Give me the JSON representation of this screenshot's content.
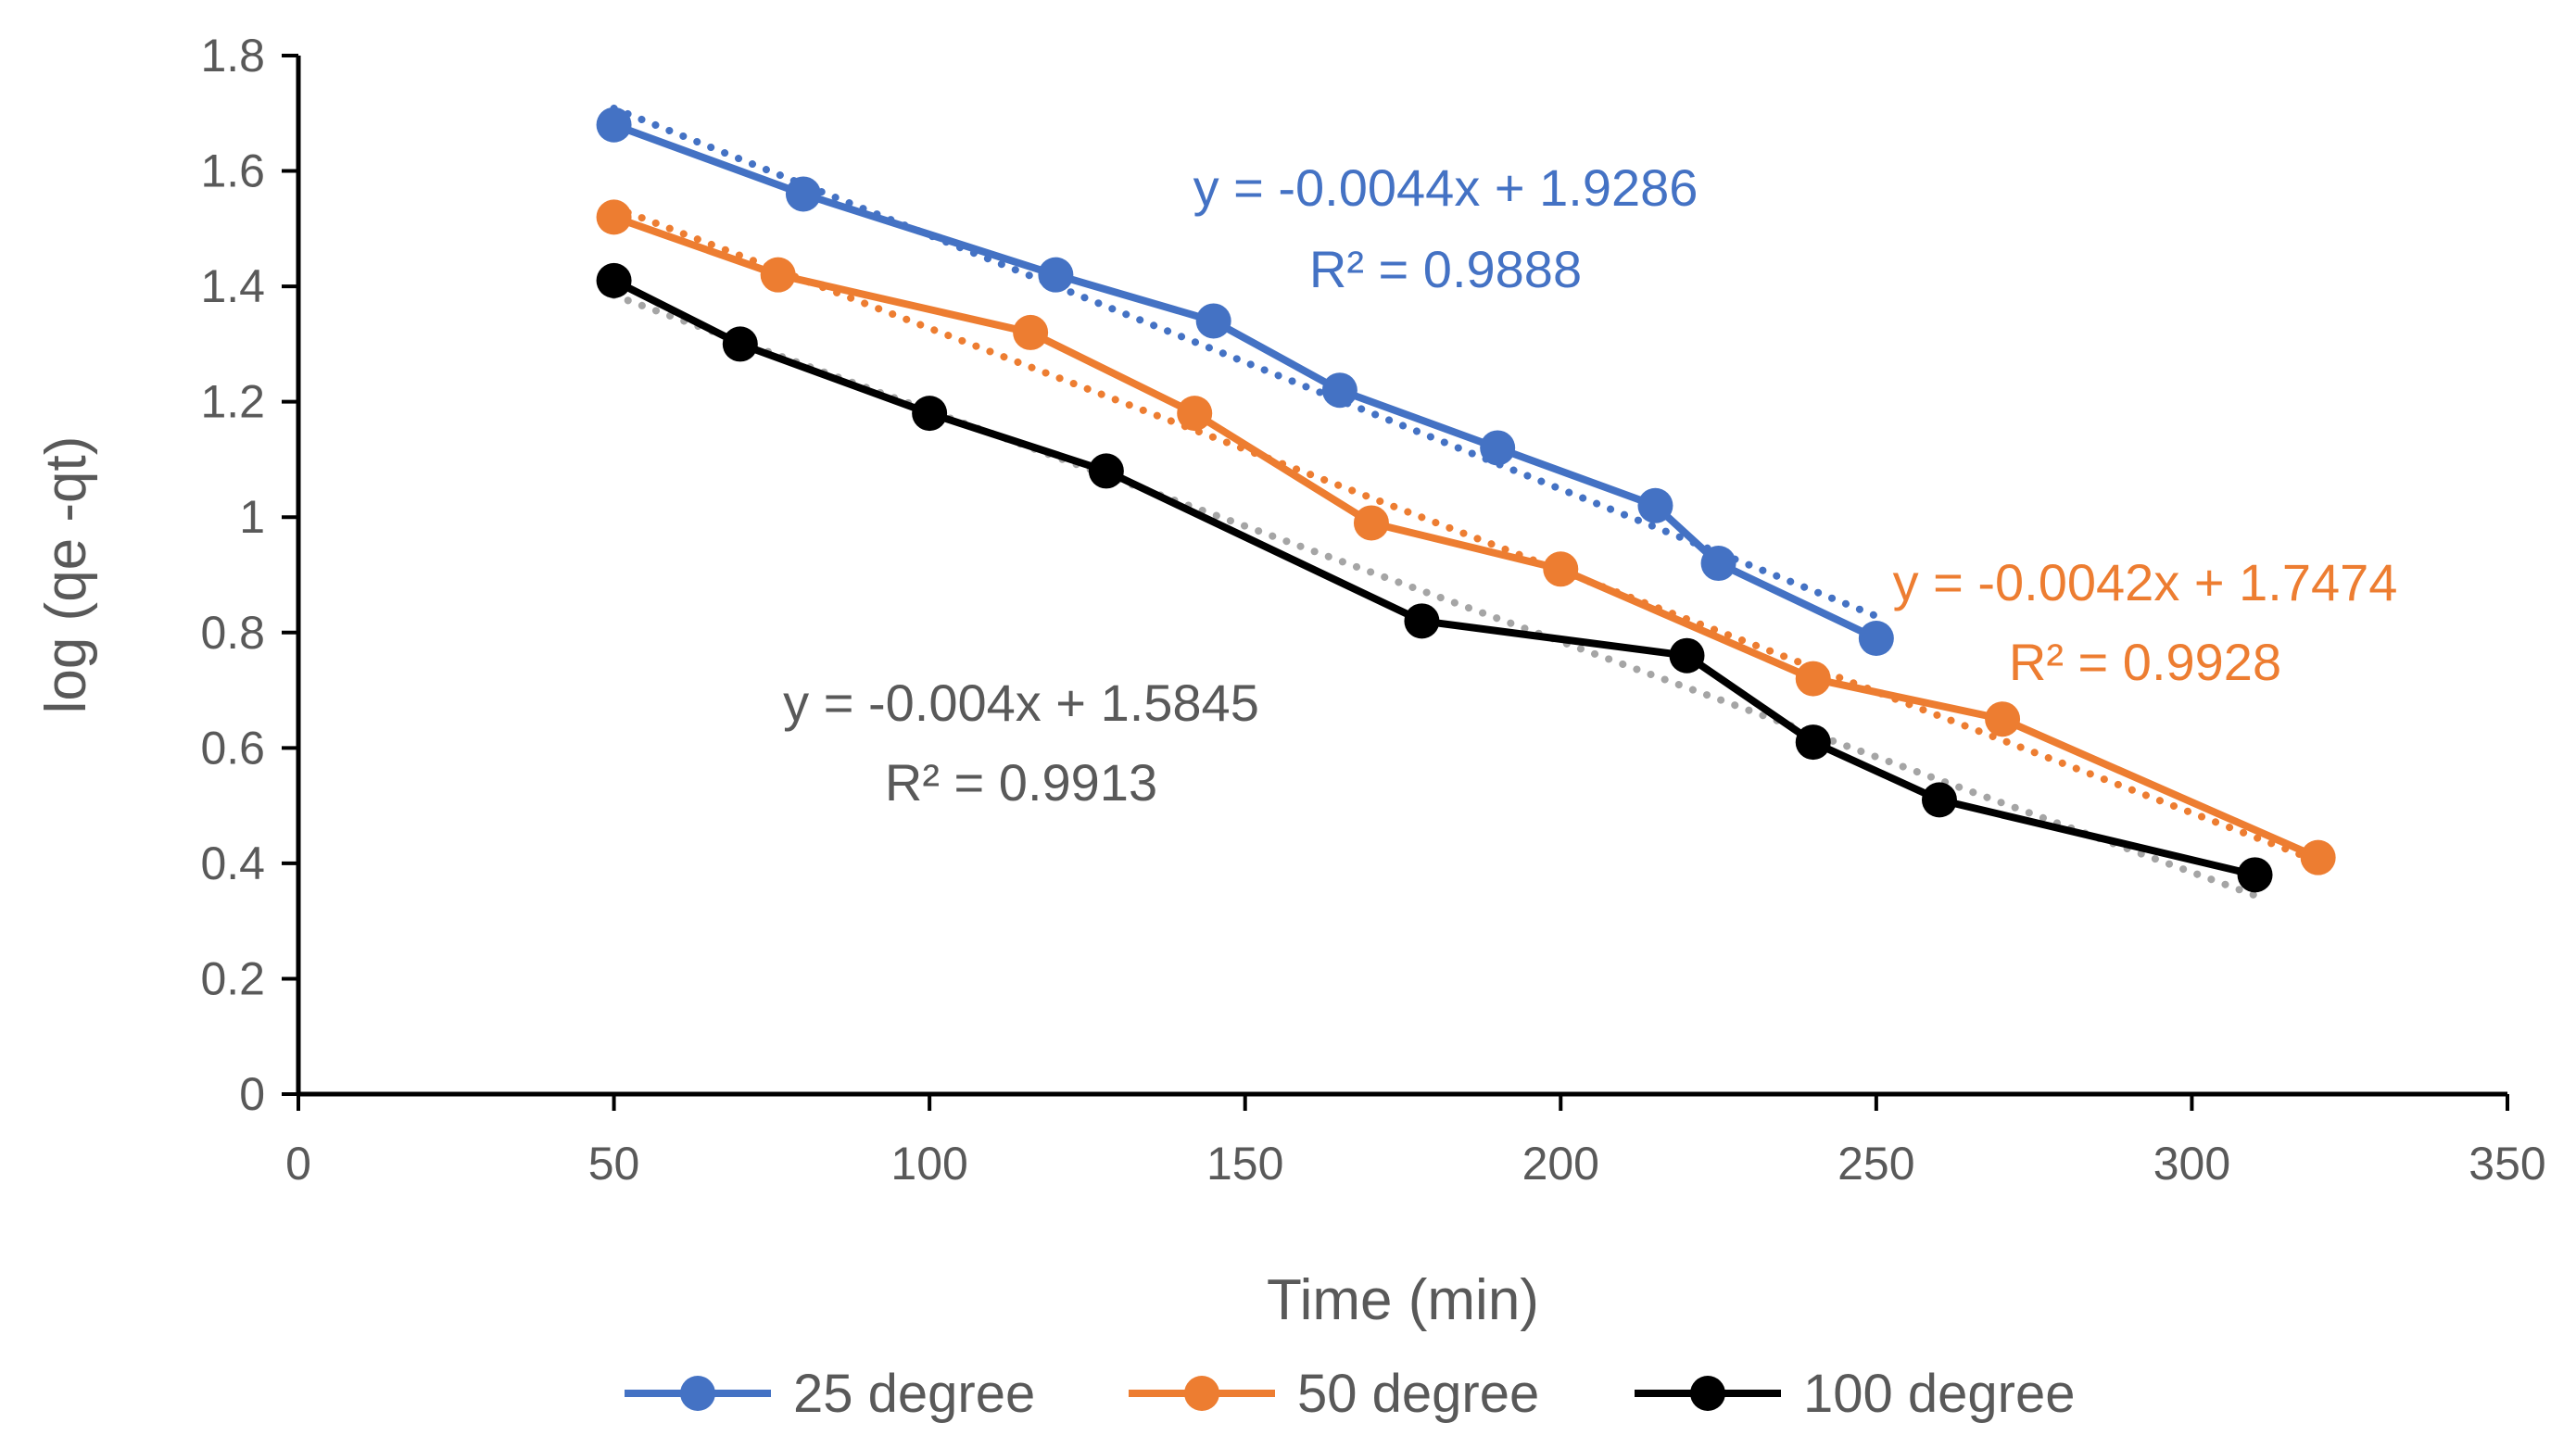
{
  "chart_data": {
    "type": "line",
    "xlabel": "Time (min)",
    "ylabel": "log (qe -qt)",
    "xlim": [
      0,
      350
    ],
    "ylim": [
      0,
      1.8
    ],
    "x_ticks": [
      0,
      50,
      100,
      150,
      200,
      250,
      300,
      350
    ],
    "y_ticks": [
      0,
      0.2,
      0.4,
      0.6,
      0.8,
      1,
      1.2,
      1.4,
      1.6,
      1.8
    ],
    "y_tick_labels": [
      "0",
      "0.2",
      "0.4",
      "0.6",
      "0.8",
      "1",
      "1.2",
      "1.4",
      "1.6",
      "1.8"
    ],
    "legend_position": "bottom",
    "grid": false,
    "series": [
      {
        "name": "25 degree",
        "color": "#4472C4",
        "x": [
          50,
          80,
          120,
          145,
          165,
          190,
          215,
          225,
          250
        ],
        "y": [
          1.68,
          1.56,
          1.42,
          1.34,
          1.22,
          1.12,
          1.02,
          0.92,
          0.79
        ],
        "trendline": {
          "slope": -0.0044,
          "intercept": 1.9286,
          "x_range": [
            50,
            250
          ]
        },
        "equation": "y = -0.0044x + 1.9286",
        "r2": "R² = 0.9888"
      },
      {
        "name": "50 degree",
        "color": "#ED7D31",
        "x": [
          50,
          76,
          116,
          142,
          170,
          200,
          240,
          270,
          320
        ],
        "y": [
          1.52,
          1.42,
          1.32,
          1.18,
          0.99,
          0.91,
          0.72,
          0.65,
          0.41
        ],
        "trendline": {
          "slope": -0.0042,
          "intercept": 1.7474,
          "x_range": [
            50,
            320
          ]
        },
        "equation": "y = -0.0042x + 1.7474",
        "r2": "R² = 0.9928"
      },
      {
        "name": "100 degree",
        "color": "#000000",
        "trend_color": "#A5A5A5",
        "x": [
          50,
          70,
          100,
          128,
          178,
          220,
          240,
          260,
          310
        ],
        "y": [
          1.41,
          1.3,
          1.18,
          1.08,
          0.82,
          0.76,
          0.61,
          0.51,
          0.38
        ],
        "trendline": {
          "slope": -0.004,
          "intercept": 1.5845,
          "x_range": [
            50,
            310
          ]
        },
        "equation": "y = -0.004x + 1.5845",
        "r2": "R² = 0.9913",
        "label_color": "#595959"
      }
    ]
  }
}
